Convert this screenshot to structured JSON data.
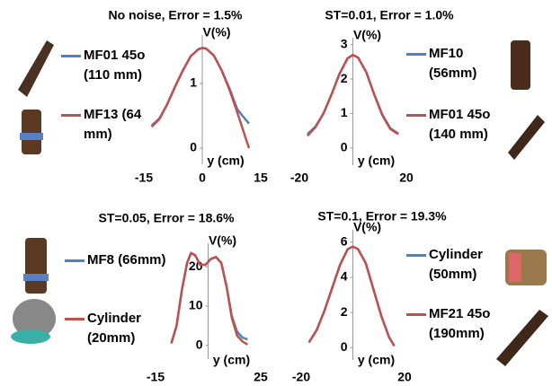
{
  "chart_data": [
    {
      "type": "line",
      "title": "No noise, Error = 1.5%",
      "xlabel": "y (cm)",
      "ylabel": "V(%)",
      "x": [
        -13,
        -11,
        -9,
        -7,
        -5,
        -3,
        -1,
        0,
        1,
        3,
        5,
        7,
        9,
        11,
        12
      ],
      "series": [
        {
          "name": "MF01 45o (110 mm)",
          "color": "#4f81bd",
          "values": [
            0.35,
            0.46,
            0.68,
            0.95,
            1.2,
            1.42,
            1.53,
            1.55,
            1.54,
            1.43,
            1.2,
            0.92,
            0.6,
            0.45,
            0.38
          ]
        },
        {
          "name": "MF13 (64 mm)",
          "color": "#c0504d",
          "values": [
            0.33,
            0.45,
            0.68,
            0.95,
            1.2,
            1.42,
            1.53,
            1.55,
            1.54,
            1.43,
            1.2,
            0.9,
            0.55,
            0.18,
            0
          ]
        }
      ],
      "xlim": [
        -15,
        15
      ],
      "xticks": [
        -15,
        0,
        15
      ],
      "ylim": [
        -0.25,
        1.75
      ],
      "yticks": [
        0,
        1
      ]
    },
    {
      "type": "line",
      "title": "ST=0.01, Error = 1.0%",
      "xlabel": "y (cm)",
      "ylabel": "V(%)",
      "x": [
        -17,
        -14,
        -11,
        -8,
        -5,
        -2,
        0,
        2,
        5,
        8,
        11,
        14,
        17
      ],
      "series": [
        {
          "name": "MF10 (56mm)",
          "color": "#4f81bd",
          "values": [
            0.4,
            0.62,
            1.0,
            1.55,
            2.15,
            2.6,
            2.7,
            2.62,
            2.2,
            1.55,
            0.97,
            0.57,
            0.42
          ]
        },
        {
          "name": "MF01 45o (140 mm)",
          "color": "#c0504d",
          "values": [
            0.35,
            0.6,
            1.0,
            1.55,
            2.15,
            2.6,
            2.7,
            2.62,
            2.2,
            1.55,
            0.95,
            0.55,
            0.4
          ]
        }
      ],
      "xlim": [
        -20,
        20
      ],
      "xticks": [
        -20,
        20
      ],
      "ylim": [
        -0.5,
        3.2
      ],
      "yticks": [
        0,
        1,
        2,
        3
      ]
    },
    {
      "type": "line",
      "title": "ST=0.05, Error = 18.6%",
      "xlabel": "y (cm)",
      "ylabel": "V(%)",
      "x": [
        -9,
        -7,
        -5,
        -3,
        -1.5,
        0,
        2,
        4,
        6,
        8,
        10,
        12,
        14,
        16,
        18,
        20
      ],
      "series": [
        {
          "name": "MF8 (66mm)",
          "color": "#4f81bd",
          "values": [
            0.5,
            5,
            14,
            21,
            23.5,
            23,
            20.5,
            20.5,
            22,
            22.5,
            21,
            15,
            7.5,
            3.5,
            2,
            1.5
          ]
        },
        {
          "name": "Cylinder (20mm)",
          "color": "#c0504d",
          "values": [
            0.5,
            5,
            14,
            21,
            23.5,
            23,
            20.5,
            20.5,
            22,
            22.5,
            21,
            15,
            7,
            2.5,
            1,
            0.2
          ]
        }
      ],
      "xlim": [
        -15,
        25
      ],
      "xticks": [
        -15,
        25
      ],
      "ylim": [
        -3.5,
        26
      ],
      "yticks": [
        0,
        10,
        20
      ]
    },
    {
      "type": "line",
      "title": "ST=0.1, Error = 19.3%",
      "xlabel": "y (cm)",
      "ylabel": "V(%)",
      "x": [
        -17,
        -14,
        -11,
        -8,
        -5,
        -2,
        0,
        2,
        5,
        8,
        11,
        14,
        16
      ],
      "series": [
        {
          "name": "Cylinder (50mm)",
          "color": "#4f81bd",
          "values": [
            0.3,
            1.0,
            2.1,
            3.4,
            4.7,
            5.6,
            5.75,
            5.6,
            4.8,
            3.3,
            1.8,
            0.6,
            0.1
          ]
        },
        {
          "name": "MF21 45o (190mm)",
          "color": "#c0504d",
          "values": [
            0.3,
            1.0,
            2.1,
            3.4,
            4.7,
            5.6,
            5.75,
            5.6,
            4.8,
            3.3,
            1.8,
            0.6,
            0.1
          ]
        }
      ],
      "xlim": [
        -20,
        20
      ],
      "xticks": [
        -20,
        20
      ],
      "ylim": [
        -0.7,
        6.7
      ],
      "yticks": [
        0,
        2,
        4,
        6
      ]
    }
  ]
}
